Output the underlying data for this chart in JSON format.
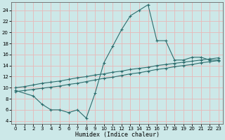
{
  "line1_x": [
    0,
    2,
    3,
    4,
    5,
    6,
    7,
    8,
    9,
    10,
    11,
    12,
    13,
    14,
    15,
    16,
    17,
    18,
    19,
    20,
    21,
    22,
    23
  ],
  "line1_y": [
    9.5,
    8.5,
    7.0,
    6.0,
    6.0,
    5.5,
    6.0,
    4.5,
    9.0,
    14.5,
    17.5,
    20.5,
    23.0,
    24.0,
    25.0,
    18.5,
    18.5,
    15.0,
    15.0,
    15.5,
    15.5,
    15.0,
    15.0
  ],
  "line2_x": [
    0,
    1,
    2,
    3,
    4,
    5,
    6,
    7,
    8,
    9,
    10,
    11,
    12,
    13,
    14,
    15,
    16,
    17,
    18,
    19,
    20,
    21,
    22,
    23
  ],
  "line2_y": [
    10.0,
    10.2,
    10.5,
    10.8,
    11.0,
    11.2,
    11.5,
    11.8,
    12.0,
    12.3,
    12.5,
    12.8,
    13.0,
    13.3,
    13.5,
    13.7,
    14.0,
    14.2,
    14.4,
    14.6,
    14.8,
    15.0,
    15.2,
    15.4
  ],
  "line3_x": [
    0,
    1,
    2,
    3,
    4,
    5,
    6,
    7,
    8,
    9,
    10,
    11,
    12,
    13,
    14,
    15,
    16,
    17,
    18,
    19,
    20,
    21,
    22,
    23
  ],
  "line3_y": [
    9.3,
    9.5,
    9.7,
    9.9,
    10.1,
    10.3,
    10.6,
    10.8,
    11.1,
    11.4,
    11.7,
    11.9,
    12.2,
    12.5,
    12.7,
    13.0,
    13.3,
    13.5,
    13.8,
    14.0,
    14.2,
    14.5,
    14.7,
    14.9
  ],
  "line_color": "#2d6e6e",
  "bg_color": "#cce8e8",
  "grid_color": "#e8b8b8",
  "xlabel": "Humidex (Indice chaleur)",
  "xlim": [
    -0.5,
    23.5
  ],
  "ylim": [
    3.5,
    25.5
  ],
  "yticks": [
    4,
    6,
    8,
    10,
    12,
    14,
    16,
    18,
    20,
    22,
    24
  ],
  "xticks": [
    0,
    1,
    2,
    3,
    4,
    5,
    6,
    7,
    8,
    9,
    10,
    11,
    12,
    13,
    14,
    15,
    16,
    17,
    18,
    19,
    20,
    21,
    22,
    23
  ],
  "marker": "+",
  "markersize": 3,
  "linewidth": 0.8,
  "xlabel_fontsize": 6,
  "tick_fontsize": 5
}
